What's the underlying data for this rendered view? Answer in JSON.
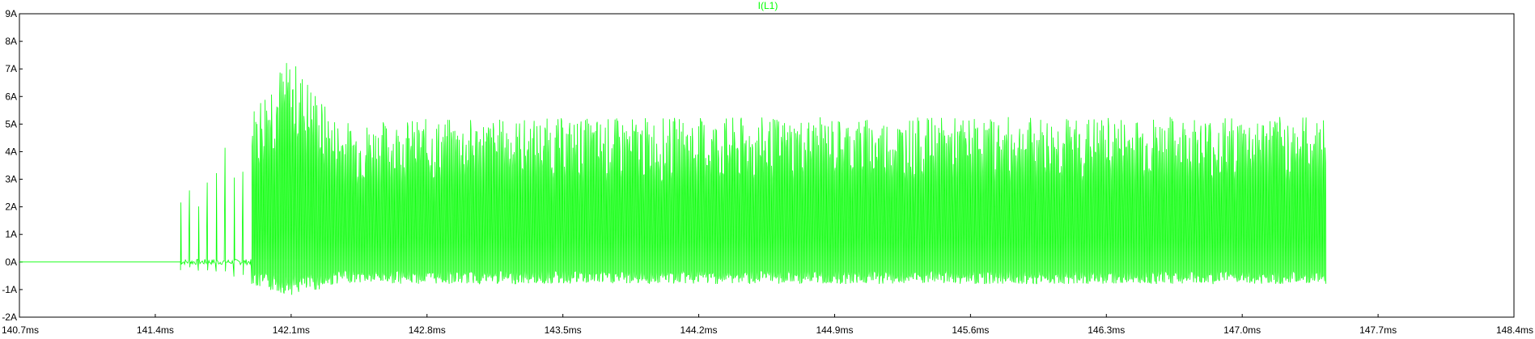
{
  "chart_data": {
    "type": "line",
    "title": "I(L1)",
    "xlabel": "",
    "ylabel": "",
    "x_unit": "ms",
    "y_unit": "A",
    "xlim": [
      140.7,
      148.4
    ],
    "ylim": [
      -2,
      9
    ],
    "xticks": [
      "140.7ms",
      "141.4ms",
      "142.1ms",
      "142.8ms",
      "143.5ms",
      "144.2ms",
      "144.9ms",
      "145.6ms",
      "146.3ms",
      "147.0ms",
      "147.7ms",
      "148.4ms"
    ],
    "yticks": [
      "9A",
      "8A",
      "7A",
      "6A",
      "5A",
      "4A",
      "3A",
      "2A",
      "1A",
      "0A",
      "-1A",
      "-2A"
    ],
    "grid": false,
    "series": [
      {
        "name": "I(L1)",
        "color": "#00ff00",
        "signal_start_ms": 140.7,
        "switching_start_ms": 141.53,
        "switching_end_ms": 147.43,
        "envelope_peak": [
          [
            141.53,
            2.8
          ],
          [
            141.65,
            3.5
          ],
          [
            141.8,
            4.5
          ],
          [
            141.9,
            5.6
          ],
          [
            142.0,
            7.0
          ],
          [
            142.1,
            7.4
          ],
          [
            142.2,
            6.6
          ],
          [
            142.3,
            5.4
          ],
          [
            142.4,
            5.1
          ],
          [
            142.8,
            5.2
          ],
          [
            144.0,
            5.25
          ],
          [
            145.5,
            5.25
          ],
          [
            147.43,
            5.3
          ]
        ],
        "envelope_trough": [
          [
            141.53,
            -0.4
          ],
          [
            141.8,
            -0.6
          ],
          [
            141.95,
            -1.0
          ],
          [
            142.1,
            -1.2
          ],
          [
            142.25,
            -1.0
          ],
          [
            142.35,
            -0.75
          ],
          [
            142.8,
            -0.8
          ],
          [
            147.43,
            -0.8
          ]
        ],
        "baseline_level": 0
      }
    ]
  }
}
